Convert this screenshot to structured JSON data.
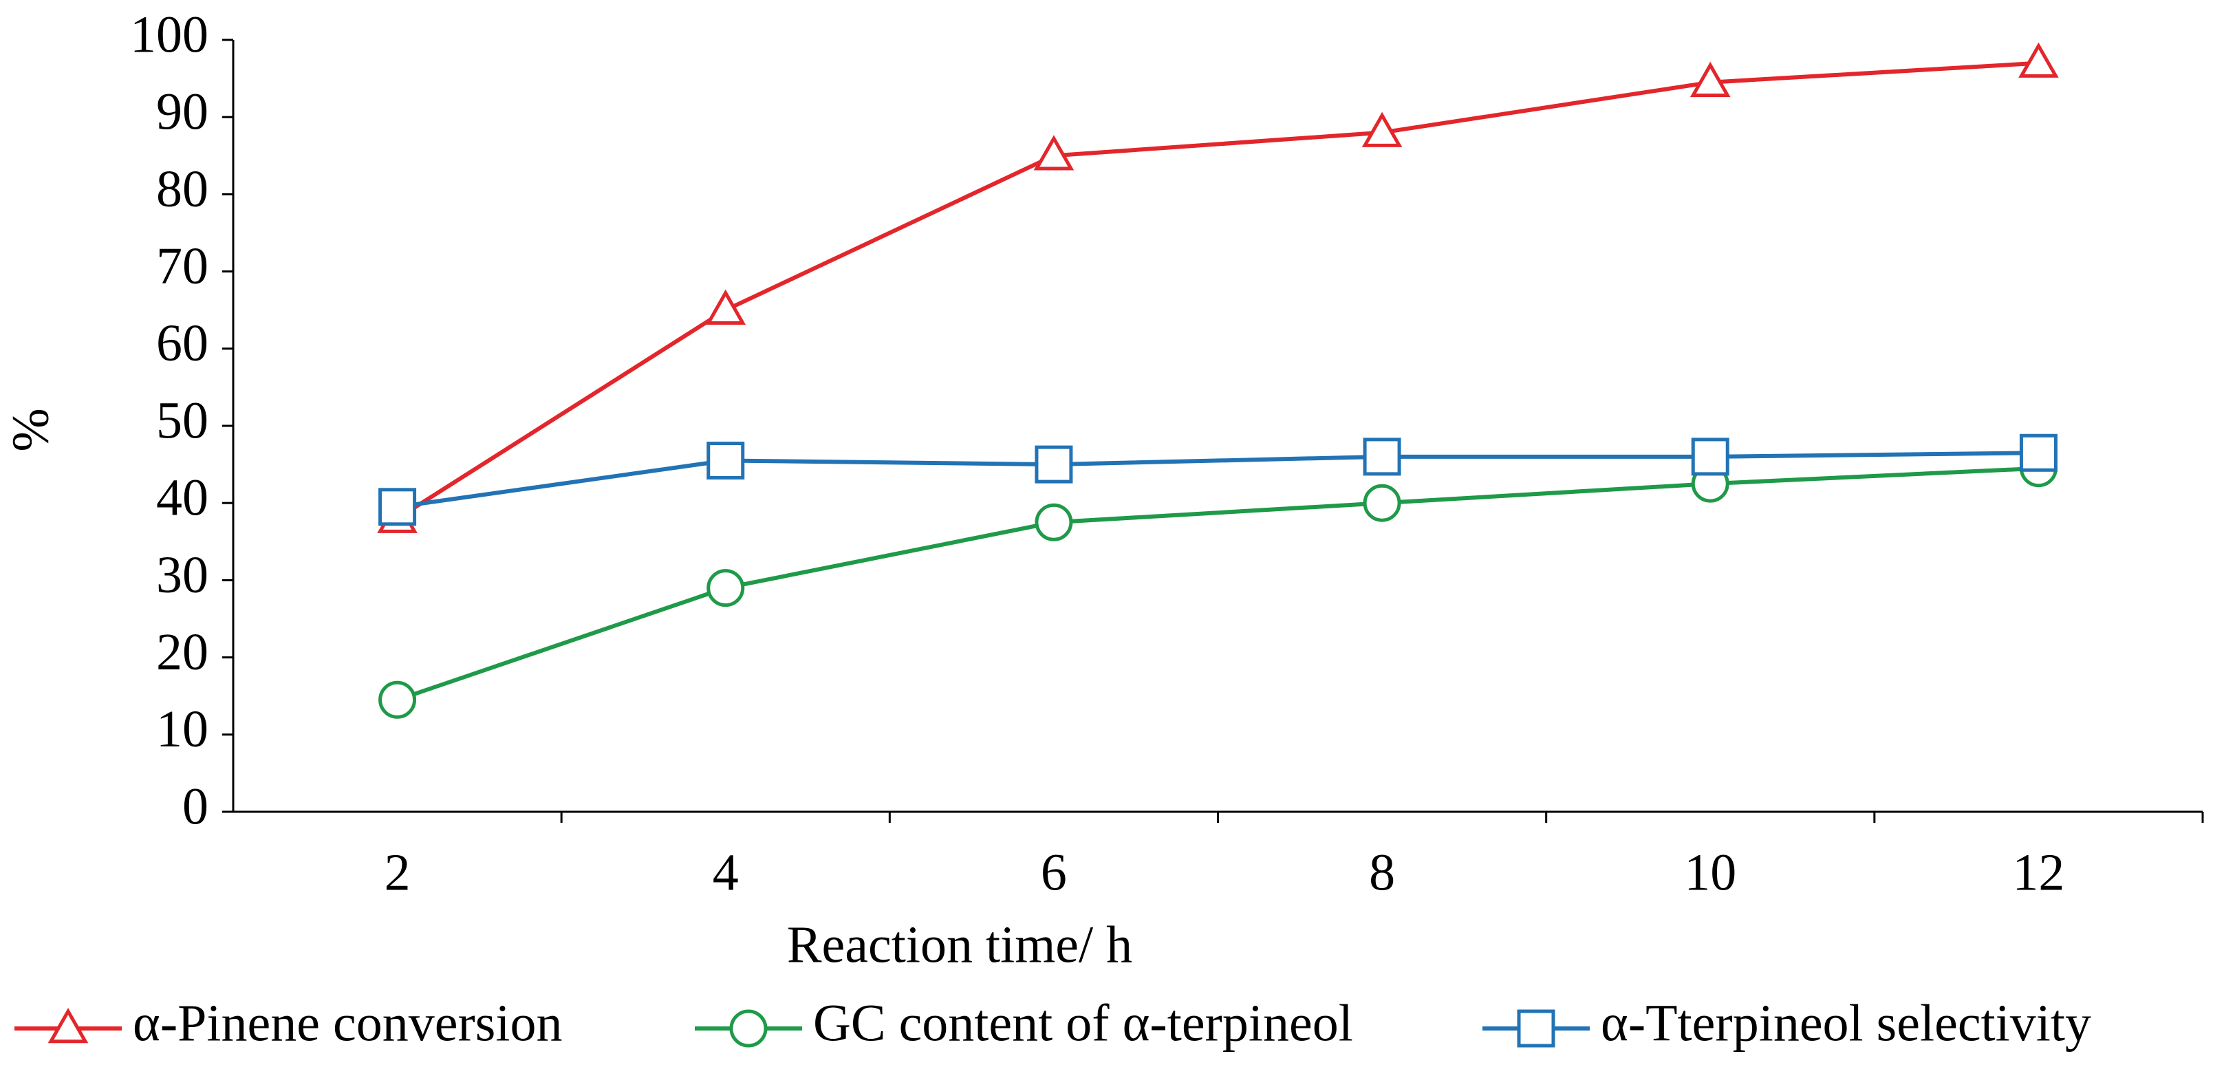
{
  "chart_data": {
    "type": "line",
    "x_label": "Reaction time/ h",
    "y_label": "%",
    "categories": [
      "2",
      "4",
      "6",
      "8",
      "10",
      "12"
    ],
    "series": [
      {
        "name": "α-Pinene conversion",
        "color": "#e3262b",
        "marker": "triangle",
        "values": [
          38,
          65,
          85,
          88,
          94.5,
          97
        ]
      },
      {
        "name": "GC content of α-terpineol",
        "color": "#1e9a48",
        "marker": "circle",
        "values": [
          14.5,
          29,
          37.5,
          40,
          42.5,
          44.5
        ]
      },
      {
        "name": "α-Tterpineol selectivity",
        "color": "#2273b5",
        "marker": "square",
        "values": [
          39.5,
          45.5,
          45,
          46,
          46,
          46.5
        ]
      }
    ],
    "ylim": [
      0,
      100
    ],
    "yticks": [
      0,
      10,
      20,
      30,
      40,
      50,
      60,
      70,
      80,
      90,
      100
    ],
    "legend": "bottom"
  }
}
